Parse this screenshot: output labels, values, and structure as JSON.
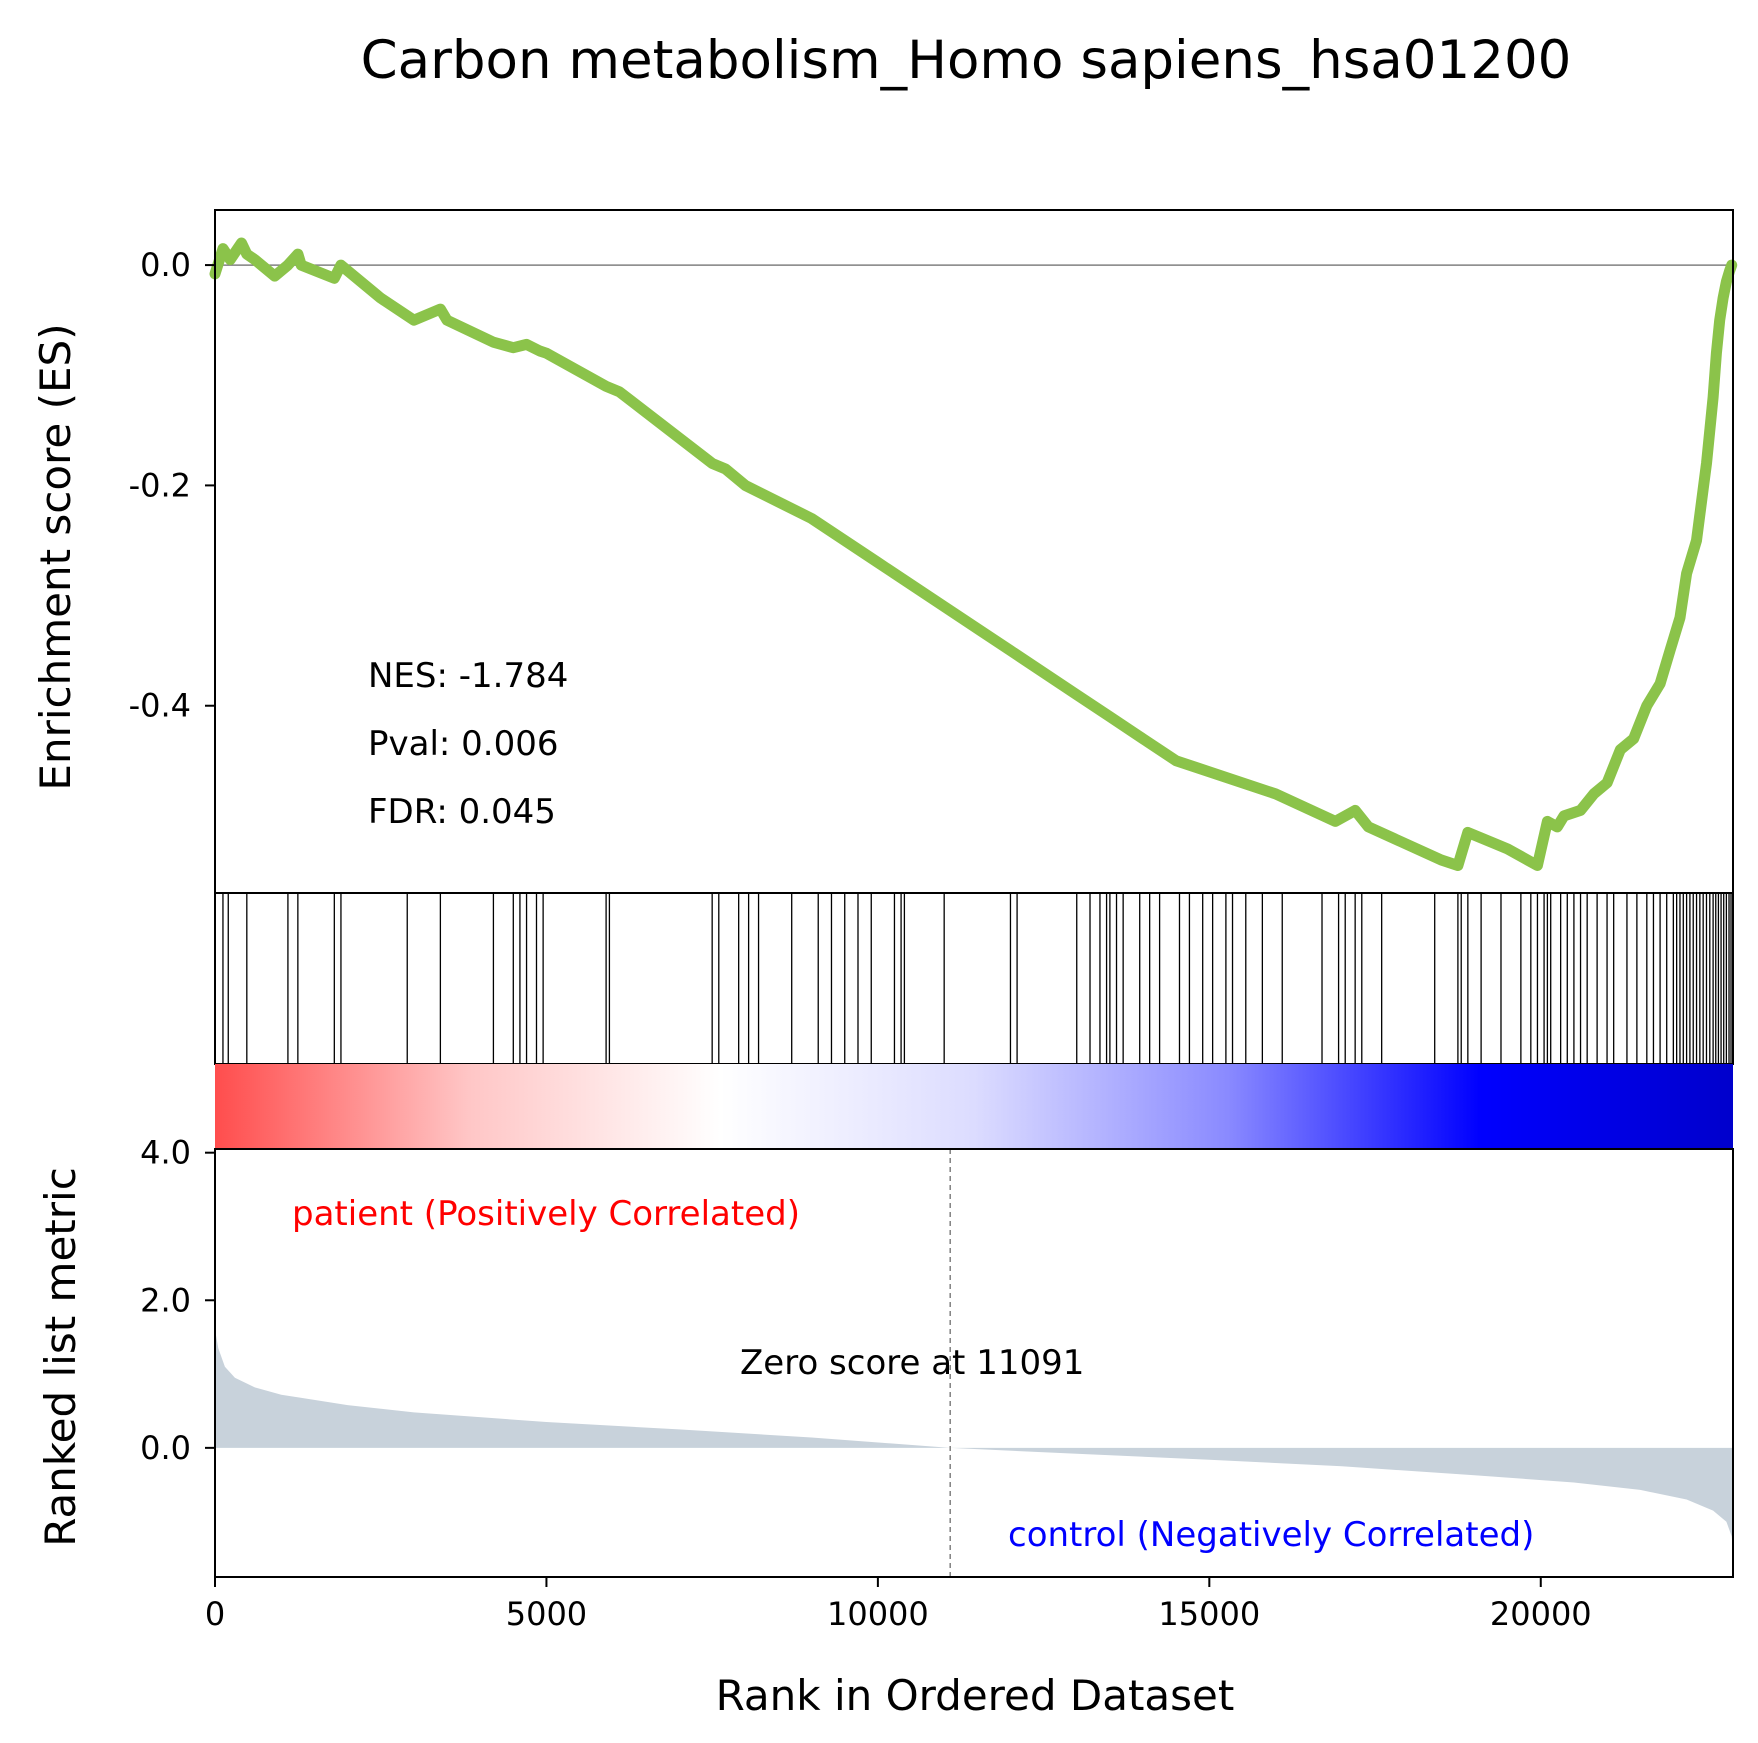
{
  "chart_data": {
    "type": "line",
    "title": "Carbon metabolism_Homo sapiens_hsa01200",
    "x_range": [
      0,
      22900
    ],
    "enrichment_plot": {
      "ylabel": "Enrichment score (ES)",
      "ylim": [
        -0.57,
        0.05
      ],
      "yticks": [
        0.0,
        -0.2,
        -0.4
      ],
      "ytick_labels": [
        "0.0",
        "-0.2",
        "-0.4"
      ],
      "line_color": "#8bc34a",
      "zero_line": true,
      "stats": {
        "nes": "NES: -1.784",
        "pval": "Pval: 0.006",
        "fdr": "FDR: 0.045"
      },
      "es_curve": {
        "x": [
          0,
          120,
          230,
          400,
          480,
          600,
          900,
          1100,
          1250,
          1300,
          1800,
          1900,
          2500,
          3000,
          3400,
          3500,
          4200,
          4500,
          4700,
          4900,
          5000,
          5900,
          6100,
          7500,
          7700,
          8000,
          9000,
          10000,
          11000,
          12000,
          13000,
          13500,
          14000,
          14500,
          15000,
          16000,
          16900,
          17200,
          17400,
          18500,
          18750,
          18900,
          19100,
          19300,
          19500,
          19950,
          20100,
          20250,
          20350,
          20600,
          20800,
          21000,
          21200,
          21400,
          21600,
          21800,
          21950,
          22100,
          22200,
          22350,
          22500,
          22600,
          22650,
          22700,
          22750,
          22800,
          22850,
          22880
        ],
        "y": [
          -0.008,
          0.015,
          0.005,
          0.02,
          0.01,
          0.005,
          -0.01,
          0.0,
          0.01,
          0.0,
          -0.012,
          0.0,
          -0.03,
          -0.05,
          -0.04,
          -0.05,
          -0.07,
          -0.075,
          -0.072,
          -0.078,
          -0.08,
          -0.11,
          -0.115,
          -0.18,
          -0.185,
          -0.2,
          -0.23,
          -0.27,
          -0.31,
          -0.35,
          -0.39,
          -0.41,
          -0.43,
          -0.45,
          -0.46,
          -0.48,
          -0.505,
          -0.495,
          -0.51,
          -0.54,
          -0.545,
          -0.515,
          -0.52,
          -0.525,
          -0.53,
          -0.545,
          -0.505,
          -0.51,
          -0.5,
          -0.495,
          -0.48,
          -0.47,
          -0.44,
          -0.43,
          -0.4,
          -0.38,
          -0.35,
          -0.32,
          -0.28,
          -0.25,
          -0.18,
          -0.12,
          -0.08,
          -0.05,
          -0.03,
          -0.015,
          -0.005,
          0.0
        ]
      }
    },
    "hits": [
      120,
      200,
      480,
      1100,
      1250,
      1800,
      1900,
      2900,
      3400,
      4200,
      4500,
      4600,
      4700,
      4850,
      4950,
      5900,
      5950,
      7500,
      7600,
      7900,
      8050,
      8200,
      8700,
      9100,
      9300,
      9500,
      9700,
      9900,
      10250,
      10350,
      10400,
      11000,
      12000,
      12100,
      13000,
      13200,
      13350,
      13450,
      13500,
      13600,
      13700,
      13950,
      14100,
      14250,
      14550,
      14700,
      14900,
      15050,
      15250,
      15350,
      15550,
      15800,
      16100,
      16700,
      16950,
      17050,
      17200,
      17300,
      17600,
      18400,
      18750,
      18800,
      18900,
      19100,
      19400,
      19700,
      19850,
      19950,
      20050,
      20100,
      20150,
      20300,
      20400,
      20500,
      20600,
      20700,
      20850,
      21000,
      21100,
      21300,
      21450,
      21600,
      21700,
      21800,
      21900,
      22000,
      22050,
      22100,
      22150,
      22200,
      22250,
      22300,
      22350,
      22400,
      22450,
      22500,
      22550,
      22600,
      22640,
      22680,
      22720,
      22760,
      22800,
      22840,
      22870
    ],
    "gradient_stops": [
      "#ff4d4d",
      "#ffc6c6",
      "#ffffff",
      "#dcdcff",
      "#8a8aff",
      "#0000ff",
      "#0000cc"
    ],
    "ranked_plot": {
      "ylabel": "Ranked list metric",
      "xlabel": "Rank in Ordered Dataset",
      "ylim": [
        -1.75,
        4.05
      ],
      "yticks": [
        4.0,
        2.0,
        0.0
      ],
      "ytick_labels": [
        "4.0",
        "2.0",
        "0.0"
      ],
      "xticks": [
        0,
        5000,
        10000,
        15000,
        20000
      ],
      "xtick_labels": [
        "0",
        "5000",
        "10000",
        "15000",
        "20000"
      ],
      "fill_color": "#c8d2db",
      "zero_cross": 11091,
      "zero_label": "Zero score at 11091",
      "pos_label": "patient (Positively Correlated)",
      "neg_label": "control (Negatively Correlated)",
      "pos_color": "#ff0000",
      "neg_color": "#0000ff",
      "metric_curve": {
        "x": [
          0,
          50,
          150,
          300,
          600,
          1000,
          2000,
          3000,
          5000,
          7000,
          9000,
          11091,
          13000,
          15000,
          17000,
          19000,
          20500,
          21500,
          22200,
          22600,
          22800,
          22880,
          22900
        ],
        "y": [
          1.6,
          1.35,
          1.1,
          0.95,
          0.82,
          0.72,
          0.58,
          0.48,
          0.35,
          0.25,
          0.14,
          0.0,
          -0.08,
          -0.16,
          -0.25,
          -0.37,
          -0.47,
          -0.57,
          -0.7,
          -0.85,
          -1.0,
          -1.2,
          -1.4
        ]
      }
    }
  }
}
